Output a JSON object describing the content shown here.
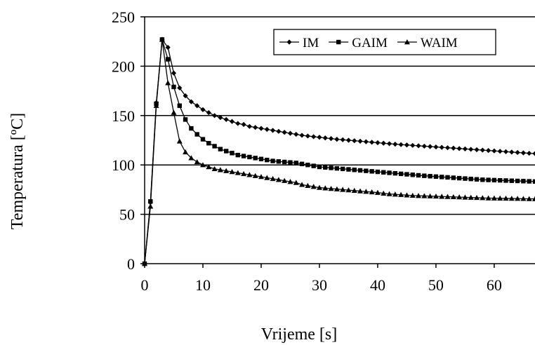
{
  "chart_data": {
    "type": "line",
    "xlabel": "Vrijeme [s]",
    "ylabel": "Temperatura [ºC]",
    "xlim": [
      0,
      67
    ],
    "ylim": [
      0,
      250
    ],
    "xticks": [
      0,
      10,
      20,
      30,
      40,
      50,
      60
    ],
    "yticks": [
      0,
      50,
      100,
      150,
      200,
      250
    ],
    "grid": "horizontal",
    "legend_placement": "top-right",
    "colors": {
      "series": "#000000",
      "grid": "#000000"
    },
    "series": [
      {
        "name": "IM",
        "marker": "diamond",
        "x": [
          0,
          1,
          2,
          3,
          4,
          5,
          6,
          7,
          8,
          9,
          10,
          11,
          12,
          13,
          14,
          15,
          16,
          17,
          18,
          19,
          20,
          21,
          22,
          23,
          24,
          25,
          26,
          27,
          28,
          29,
          30,
          31,
          32,
          33,
          34,
          35,
          36,
          37,
          38,
          39,
          40,
          41,
          42,
          43,
          44,
          45,
          46,
          47,
          48,
          49,
          50,
          51,
          52,
          53,
          54,
          55,
          56,
          57,
          58,
          59,
          60,
          61,
          62,
          63,
          64,
          65,
          66,
          67
        ],
        "values": [
          0,
          62,
          163,
          227,
          219,
          193,
          178,
          170,
          164,
          160,
          156,
          153,
          150,
          148,
          146,
          144,
          142,
          141,
          139,
          138,
          137,
          136,
          135,
          134,
          133,
          132,
          131,
          130,
          129.3,
          128.6,
          128,
          127.3,
          126.7,
          126,
          125.5,
          125,
          124.5,
          124,
          123.5,
          123,
          122.5,
          122,
          121.5,
          121,
          120.6,
          120.2,
          119.8,
          119.4,
          119,
          118.6,
          118.2,
          117.8,
          117.4,
          117,
          116.6,
          116.2,
          115.8,
          115.4,
          115,
          114.6,
          114.2,
          113.8,
          113.4,
          113,
          112.6,
          112.2,
          111.8,
          111.5
        ]
      },
      {
        "name": "GAIM",
        "marker": "square",
        "x": [
          0,
          1,
          2,
          3,
          4,
          5,
          6,
          7,
          8,
          9,
          10,
          11,
          12,
          13,
          14,
          15,
          16,
          17,
          18,
          19,
          20,
          21,
          22,
          23,
          24,
          25,
          26,
          27,
          28,
          29,
          30,
          31,
          32,
          33,
          34,
          35,
          36,
          37,
          38,
          39,
          40,
          41,
          42,
          43,
          44,
          45,
          46,
          47,
          48,
          49,
          50,
          51,
          52,
          53,
          54,
          55,
          56,
          57,
          58,
          59,
          60,
          61,
          62,
          63,
          64,
          65,
          66,
          67
        ],
        "values": [
          0,
          63,
          162,
          227,
          207,
          179,
          160,
          146,
          137,
          131,
          126,
          122,
          119,
          116,
          114,
          112,
          110,
          109,
          108,
          107,
          106,
          105,
          104,
          103.5,
          103,
          102.5,
          102,
          101,
          100,
          99,
          98,
          97.5,
          97,
          96.5,
          96,
          95.5,
          95,
          94.5,
          94,
          93.5,
          93,
          92.5,
          92,
          91.5,
          91,
          90.5,
          90,
          89.5,
          89,
          88.6,
          88.2,
          87.8,
          87.4,
          87,
          86.6,
          86.2,
          85.8,
          85.4,
          85,
          84.8,
          84.6,
          84.4,
          84.2,
          84,
          83.8,
          83.6,
          83.4,
          83.2
        ]
      },
      {
        "name": "WAIM",
        "marker": "triangle",
        "x": [
          0,
          1,
          2,
          3,
          4,
          5,
          6,
          7,
          8,
          9,
          10,
          11,
          12,
          13,
          14,
          15,
          16,
          17,
          18,
          19,
          20,
          21,
          22,
          23,
          24,
          25,
          26,
          27,
          28,
          29,
          30,
          31,
          32,
          33,
          34,
          35,
          36,
          37,
          38,
          39,
          40,
          41,
          42,
          43,
          44,
          45,
          46,
          47,
          48,
          49,
          50,
          51,
          52,
          53,
          54,
          55,
          56,
          57,
          58,
          59,
          60,
          61,
          62,
          63,
          64,
          65,
          66,
          67
        ],
        "values": [
          0,
          58,
          160,
          227,
          183,
          153,
          124,
          113,
          107,
          103,
          100,
          98,
          96,
          95,
          94,
          93,
          92,
          91,
          90,
          89,
          88,
          87,
          86,
          85,
          84,
          83,
          82,
          80,
          79,
          78,
          77,
          76.5,
          76,
          75.5,
          75,
          74.5,
          74,
          73.5,
          73,
          72.5,
          72,
          71.2,
          70.6,
          70.2,
          69.8,
          69.4,
          69,
          68.8,
          68.6,
          68.4,
          68.2,
          68,
          67.8,
          67.6,
          67.4,
          67.2,
          67,
          66.8,
          66.6,
          66.4,
          66.3,
          66.2,
          66.1,
          66,
          65.9,
          65.8,
          65.7,
          65.6
        ]
      }
    ]
  }
}
